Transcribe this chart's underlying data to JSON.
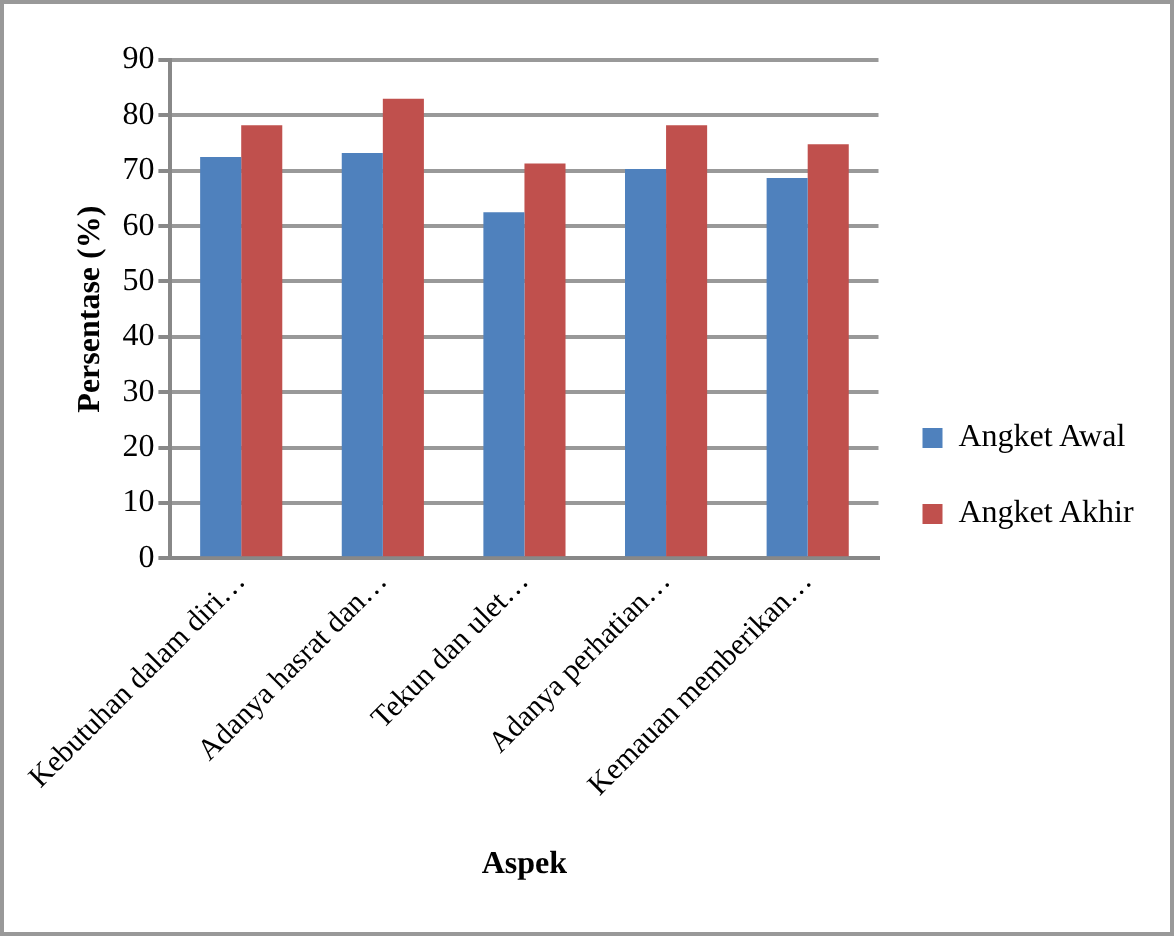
{
  "chart_data": {
    "type": "bar",
    "xlabel": "Aspek",
    "ylabel": "Persentase (%)",
    "categories": [
      "Kebutuhan dalam diri…",
      "Adanya hasrat dan…",
      "Tekun dan ulet…",
      "Adanya perhatian…",
      "Kemauan memberikan…"
    ],
    "series": [
      {
        "name": "Angket Awal",
        "color": "#4f81bd",
        "values": [
          72.5,
          73.2,
          62.5,
          70.3,
          68.7
        ]
      },
      {
        "name": "Angket Akhir",
        "color": "#c0504d",
        "values": [
          78.2,
          83,
          71.3,
          78.2,
          74.8
        ]
      }
    ],
    "ylim": [
      0,
      90
    ],
    "yticks": [
      0,
      10,
      20,
      30,
      40,
      50,
      60,
      70,
      80,
      90
    ],
    "grid": "y",
    "legend": "right"
  }
}
